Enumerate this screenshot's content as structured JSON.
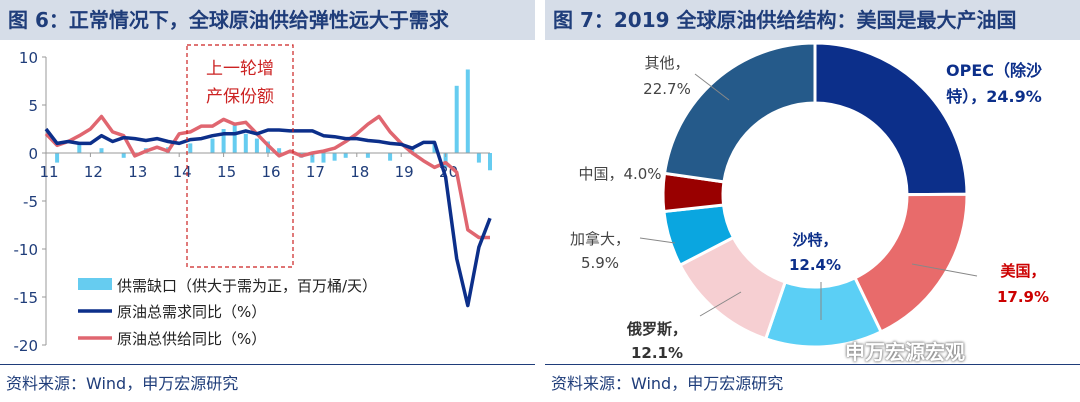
{
  "left": {
    "title": "图 6：正常情况下，全球原油供给弹性远大于需求",
    "source": "资料来源：Wind，申万宏源研究",
    "annotation_lines": [
      "上一轮增",
      "产保份额"
    ],
    "legend": [
      "供需缺口（供大于需为正，百万桶/天）",
      "原油总需求同比（%）",
      "原油总供给同比（%）"
    ],
    "colors": {
      "gap": "#66ccf0",
      "demand": "#0c2f8a",
      "supply": "#e06670",
      "annotation": "#cc2222"
    }
  },
  "right": {
    "title": "图 7：2019 全球原油供给结构：美国是最大产油国",
    "source": "资料来源：Wind，申万宏源研究",
    "watermark": "申万宏源宏观"
  },
  "chart_data": [
    {
      "type": "bar+line",
      "ylim": [
        -20,
        10
      ],
      "yticks": [
        10,
        5,
        0,
        -5,
        -10,
        -15,
        -20
      ],
      "xticks": [
        "11",
        "12",
        "13",
        "14",
        "15",
        "16",
        "17",
        "18",
        "19",
        "20"
      ],
      "series": [
        {
          "name": "供需缺口（供大于需为正，百万桶/天）",
          "kind": "bar",
          "x": [
            11.25,
            11.75,
            12.25,
            12.75,
            13.25,
            13.75,
            14.25,
            14.75,
            15.0,
            15.25,
            15.5,
            15.75,
            16.0,
            16.25,
            16.75,
            17.0,
            17.25,
            17.5,
            17.75,
            18.25,
            18.75,
            19.25,
            19.75,
            20.0,
            20.25,
            20.5,
            20.75,
            21.0
          ],
          "values": [
            -1.0,
            1.0,
            0.5,
            -0.5,
            0.5,
            0.6,
            1.0,
            1.5,
            2.5,
            3.0,
            2.0,
            1.5,
            1.2,
            0.5,
            -0.5,
            -1.0,
            -1.0,
            -0.8,
            -0.5,
            -0.5,
            -0.8,
            0.6,
            1.0,
            -1.5,
            7.0,
            8.7,
            -1.0,
            -1.8
          ]
        },
        {
          "name": "原油总需求同比（%）",
          "kind": "line",
          "x": [
            11.0,
            11.25,
            11.5,
            11.75,
            12.0,
            12.25,
            12.5,
            12.75,
            13.0,
            13.25,
            13.5,
            13.75,
            14.0,
            14.25,
            14.5,
            14.75,
            15.0,
            15.25,
            15.5,
            15.75,
            16.0,
            16.25,
            16.5,
            16.75,
            17.0,
            17.25,
            17.5,
            17.75,
            18.0,
            18.25,
            18.5,
            18.75,
            19.0,
            19.25,
            19.5,
            19.75,
            20.0,
            20.25,
            20.5,
            20.75,
            21.0
          ],
          "values": [
            2.5,
            1.0,
            1.2,
            1.0,
            1.0,
            1.8,
            1.2,
            1.6,
            1.5,
            1.3,
            1.5,
            1.2,
            1.0,
            1.4,
            1.5,
            1.8,
            2.0,
            2.0,
            2.3,
            2.0,
            2.4,
            2.4,
            2.3,
            2.3,
            2.3,
            1.8,
            1.7,
            1.5,
            1.5,
            1.3,
            1.2,
            1.0,
            0.9,
            0.5,
            1.1,
            1.1,
            -2.5,
            -11.0,
            -15.9,
            -9.8,
            -6.8
          ]
        },
        {
          "name": "原油总供给同比（%）",
          "kind": "line",
          "x": [
            11.0,
            11.25,
            11.5,
            11.75,
            12.0,
            12.25,
            12.5,
            12.75,
            13.0,
            13.25,
            13.5,
            13.75,
            14.0,
            14.25,
            14.5,
            14.75,
            15.0,
            15.25,
            15.5,
            15.75,
            16.0,
            16.25,
            16.5,
            16.75,
            17.0,
            17.25,
            17.5,
            17.75,
            18.0,
            18.25,
            18.5,
            18.75,
            19.0,
            19.25,
            19.5,
            19.75,
            20.0,
            20.25,
            20.5,
            20.75,
            21.0
          ],
          "values": [
            2.0,
            0.8,
            1.2,
            1.8,
            2.5,
            3.8,
            2.2,
            1.8,
            -0.3,
            0.2,
            0.6,
            0.2,
            2.0,
            2.2,
            2.8,
            2.8,
            3.5,
            3.0,
            3.2,
            2.0,
            0.8,
            -0.3,
            0.2,
            -0.3,
            0.0,
            0.2,
            0.5,
            1.2,
            2.0,
            3.0,
            3.8,
            2.2,
            1.0,
            0.0,
            -0.8,
            -1.5,
            -1.0,
            -2.0,
            -8.0,
            -8.8,
            -8.8
          ]
        }
      ]
    },
    {
      "type": "pie",
      "donut": true,
      "categories": [
        "OPEC（除沙特）",
        "美国",
        "沙特",
        "俄罗斯",
        "加拿大",
        "中国",
        "其他"
      ],
      "values": [
        24.9,
        17.9,
        12.4,
        12.1,
        5.9,
        4.0,
        22.7
      ],
      "labels": [
        "24.9%",
        "17.9%",
        "12.4%",
        "12.1%",
        "5.9%",
        "4.0%",
        "22.7%"
      ],
      "colors": [
        "#0c2f8a",
        "#e86b6b",
        "#5bcff5",
        "#f6cfd2",
        "#0aa6e0",
        "#990000",
        "#255a8a"
      ]
    }
  ]
}
